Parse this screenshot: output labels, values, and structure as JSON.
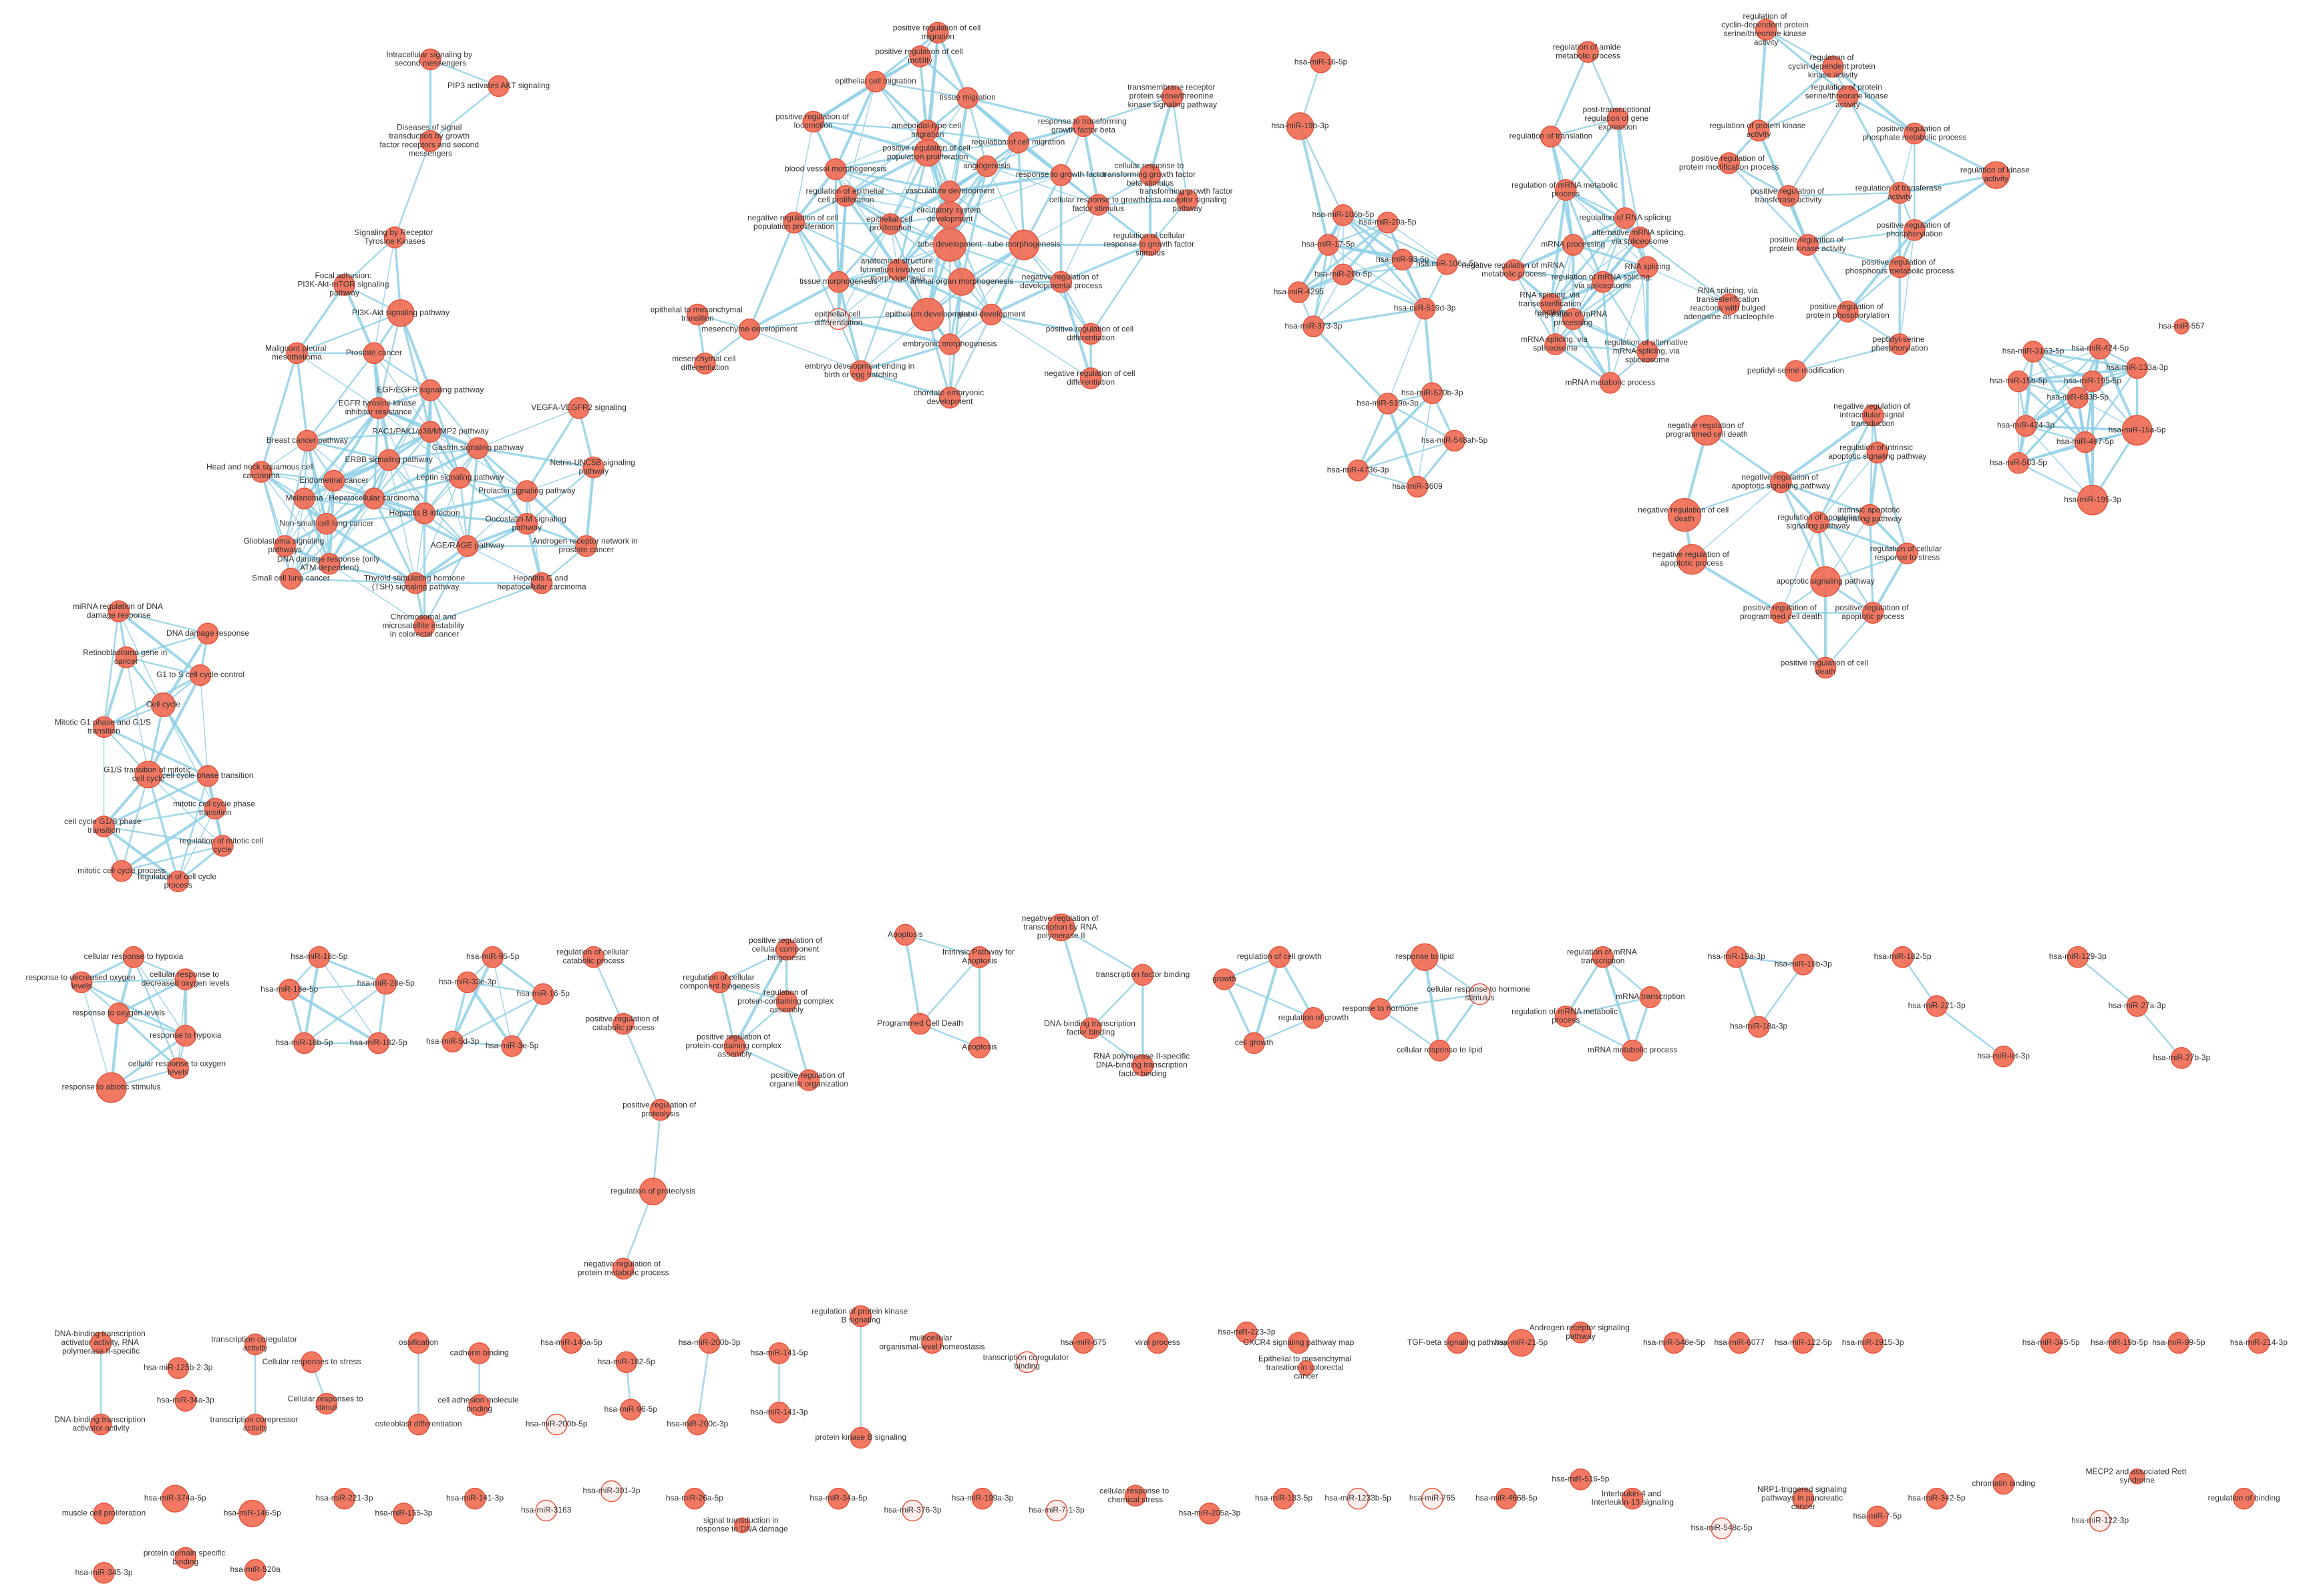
{
  "nodes": [
    "Intracellular signaling by second messengers",
    "PIP3 activates AKT signaling",
    "Diseases of signal transduction by growth factor receptors and second messengers",
    "Signaling by Receptor Tyrosine Kinases",
    "Focal adhesion: PI3K-Akt-mTOR signaling pathway",
    "PI3K-Akt signaling pathway",
    "Malignant pleural mesothelioma",
    "Prostate cancer",
    "EGF/EGFR signaling pathway",
    "VEGFA-VEGFR2 signaling",
    "EGFR tyrosine kinase inhibitor resistance",
    "RAC1/PAK1/p38/MMP2 pathway",
    "Breast cancer pathway",
    "Gastrin signaling pathway",
    "ERBB signaling pathway",
    "Netrin-UNC5B signaling pathway",
    "Head and neck squamous cell carcinoma",
    "Endometrial cancer",
    "Leptin signaling pathway",
    "Prolactin signaling pathway",
    "Hepatocellular carcinoma",
    "Melanoma",
    "Hepatitis B infection",
    "Non-small cell lung cancer",
    "Oncostatin M signaling pathway",
    "Glioblastoma signaling pathways",
    "Androgen receptor network in prostate cancer",
    "AGE/RAGE pathway",
    "DNA damage response (only ATM dependent)",
    "Small cell lung cancer",
    "Thyroid stimulating hormone (TSH) signaling pathway",
    "Hepatitis C and hepatocellular carcinoma",
    "Chromosomal and microsatellite instability in colorectal cancer",
    "miRNA regulation of DNA damage response",
    "DNA damage response",
    "Retinoblastoma gene in cancer",
    "G1 to S cell cycle control",
    "Cell cycle",
    "Mitotic G1 phase and G1/S transition",
    "G1/S transition of mitotic cell cycle",
    "cell cycle phase transition",
    "mitotic cell cycle phase transition",
    "cell cycle G1/S phase transition",
    "regulation of mitotic cell cycle",
    "mitotic cell cycle process",
    "regulation of cell cycle process",
    "positive regulation of cell migration",
    "positive regulation of cell motility",
    "epithelial cell migration",
    "tissue migration",
    "positive regulation of locomotion",
    "ameboidal-type cell migration",
    "regulation of cell migration",
    "positive regulation of cell population proliferation",
    "angiogenesis",
    "blood vessel morphogenesis",
    "regulation of epithelial cell proliferation",
    "vasculature development",
    "negative regulation of cell population proliferation",
    "epithelial cell proliferation",
    "circulatory system development",
    "tube development",
    "tube morphogenesis",
    "anatomical structure formation involved in morphogenesis",
    "animal organ morphogenesis",
    "tissue morphogenesis",
    "negative regulation of developmental process",
    "epithelial cell differentiation",
    "epithelium development",
    "gland development",
    "embryonic morphogenesis",
    "positive regulation of cell differentiation",
    "embryo development ending in birth or egg hatching",
    "negative regulation of cell differentiation",
    "chordate embryonic development",
    "epithelial to mesenchymal transition",
    "mesenchyme development",
    "mesenchymal cell differentiation",
    "transmembrane receptor protein serine/threonine kinase signaling pathway",
    "response to transforming growth factor beta",
    "response to growth factor",
    "cellular response to transforming growth factor beta stimulus",
    "cellular response to growth factor stimulus",
    "transforming growth factor beta receptor signaling pathway",
    "regulation of cellular response to growth factor stimulus",
    "hsa-miR-16-5p",
    "hsa-miR-19b-3p",
    "hsa-miR-106b-5p",
    "hsa-miR-20a-5p",
    "hsa-miR-17-5p",
    "hsa-miR-93-5p",
    "hsa-miR-20b-5p",
    "hsa-miR-106a-5p",
    "hsa-miR-519d-3p",
    "hsa-miR-4295",
    "hsa-miR-373-3p",
    "hsa-miR-520b-3p",
    "hsa-miR-519a-3p",
    "hsa-miR-548ah-5p",
    "hsa-miR-4736-3p",
    "hsa-miR-3609",
    "regulation of amide metabolic process",
    "post-transcriptional regulation of gene expression",
    "regulation of translation",
    "regulation of mRNA metabolic process",
    "regulation of RNA splicing",
    "mRNA processing",
    "alternative mRNA splicing, via spliceosome",
    "RNA splicing",
    "negative regulation of mRNA metabolic process",
    "regulation of mRNA splicing, via spliceosome",
    "RNA splicing, via transesterification reactions",
    "RNA splicing, via transesterification reactions with bulged adenosine as nucleophile",
    "regulation of mRNA processing",
    "mRNA splicing, via spliceosome",
    "regulation of alternative mRNA splicing, via spliceosome",
    "mRNA metabolic process",
    "regulation of cyclin-dependent protein serine/threonine kinase activity",
    "regulation of cyclin-dependent protein kinase activity",
    "regulation of protein serine/threonine kinase activity",
    "regulation of protein kinase activity",
    "positive regulation of phosphate metabolic process",
    "positive regulation of protein modification process",
    "regulation of kinase activity",
    "positive regulation of transferase activity",
    "regulation of transferase activity",
    "positive regulation of phosphorylation",
    "positive regulation of protein kinase activity",
    "positive regulation of phosphorus metabolic process",
    "positive regulation of protein phosphorylation",
    "peptidyl-serine phosphorylation",
    "peptidyl-serine modification",
    "hsa-miR-557",
    "hsa-miR-3163-5p",
    "hsa-miR-424-5p",
    "hsa-miR-133a-3p",
    "hsa-miR-195-5p",
    "hsa-miR-6838-5p",
    "hsa-miR-15b-5p",
    "hsa-miR-424-3p",
    "hsa-miR-497-5p",
    "hsa-miR-15a-5p",
    "hsa-miR-503-5p",
    "hsa-miR-195-3p",
    "negative regulation of intracellular signal transduction",
    "negative regulation of programmed cell death",
    "regulation of intrinsic apoptotic signaling pathway",
    "negative regulation of apoptotic signaling pathway",
    "negative regulation of cell death",
    "intrinsic apoptotic signaling pathway",
    "regulation of apoptotic signaling pathway",
    "negative regulation of apoptotic process",
    "regulation of cellular response to stress",
    "apoptotic signaling pathway",
    "positive regulation of programmed cell death",
    "positive regulation of apoptotic process",
    "positive regulation of cell death",
    "cellular response to hypoxia",
    "cellular response to decreased oxygen levels",
    "response to decreased oxygen levels",
    "response to oxygen levels",
    "response to hypoxia",
    "cellular response to oxygen levels",
    "response to abiotic stimulus",
    "hsa-miR-18c-5p",
    "hsa-miR-18e-5p",
    "hsa-miR-28e-5p",
    "hsa-miR-18b-5p",
    "hsa-miR-182-5p",
    "hsa-miR-95-5p",
    "hsa-miR-33e-3p",
    "hsa-miR-16-5p",
    "hsa-miR-5d-3p",
    "hsa-miR-3e-5p",
    "regulation of cellular catabolic process",
    "positive regulation of catabolic process",
    "positive regulation of proteolysis",
    "regulation of proteolysis",
    "negative regulation of protein metabolic process",
    "positive regulation of cellular component biogenesis",
    "regulation of cellular component biogenesis",
    "regulation of protein-containing complex assembly",
    "positive regulation of protein-containing complex assembly",
    "positive regulation of organelle organization",
    "Apoptosis",
    "Intrinsic Pathway for Apoptosis",
    "Programmed Cell Death",
    "Apoptosis",
    "negative regulation of transcription by RNA polymerase II",
    "transcription factor binding",
    "DNA-binding transcription factor binding",
    "RNA polymerase II-specific DNA-binding transcription factor binding",
    "regulation of cell growth",
    "growth",
    "regulation of growth",
    "cell growth",
    "response to lipid",
    "cellular response to hormone stimulus",
    "response to hormone",
    "cellular response to lipid",
    "regulation of mRNA transcription",
    "mRNA transcription",
    "regulation of mRNA metabolic process",
    "mRNA metabolic process",
    "hsa-miR-19a-3p",
    "hsa-miR-19b-3p",
    "hsa-miR-18a-3p",
    "hsa-miR-182-5p",
    "hsa-miR-221-3p",
    "hsa-miR-let-3p",
    "hsa-miR-129-3p",
    "hsa-miR-27a-3p",
    "hsa-miR-27b-3p",
    "DNA-binding transcription activator activity, RNA polymerase II-specific",
    "DNA-binding transcription activator activity",
    "hsa-miR-125b-2-3p",
    "hsa-miR-34a-3p",
    "transcription coregulator activity",
    "transcription corepressor activity",
    "Cellular responses to stress",
    "Cellular responses to stimuli",
    "ossification",
    "osteoblast differentiation",
    "cadherin binding",
    "cell adhesion molecule binding",
    "hsa-miR-146a-5p",
    "hsa-miR-200b-5p",
    "hsa-miR-182-5p",
    "hsa-miR-96-5p",
    "hsa-miR-200b-3p",
    "hsa-miR-200c-3p",
    "hsa-miR-141-5p",
    "hsa-miR-141-3p",
    "regulation of protein kinase B signaling",
    "protein kinase B signaling",
    "multicellular organismal-level homeostasis",
    "transcription coregulator binding",
    "hsa-miR-675",
    "viral process",
    "hsa-miR-223-3p",
    "CXCR4 signaling pathway map",
    "Epithelial to mesenchymal transition in colorectal cancer",
    "TGF-beta signaling pathway",
    "hsa-miR-21-5p",
    "Androgen receptor signaling pathway",
    "hsa-miR-548e-5p",
    "hsa-miR-6077",
    "hsa-miR-122-5p",
    "hsa-miR-1915-3p",
    "hsa-miR-345-5p",
    "hsa-miR-19b-5p",
    "hsa-miR-99-5p",
    "hsa-miR-214-3p",
    "muscle cell proliferation",
    "hsa-miR-374a-5p",
    "hsa-miR-146-5p",
    "hsa-miR-221-3p",
    "hsa-miR-155-3p",
    "hsa-miR-141-3p",
    "hsa-miR-3163",
    "hsa-miR-301-3p",
    "hsa-miR-26a-5p",
    "signal transduction in response to DNA damage",
    "hsa-miR-34a-5p",
    "hsa-miR-376-3p",
    "hsa-miR-199a-3p",
    "hsa-miR-7-1-3p",
    "cellular response to chemical stress",
    "hsa-miR-205a-3p",
    "hsa-miR-183-5p",
    "hsa-miR-1233b-5p",
    "hsa-miR-765",
    "hsa-miR-4668-5p",
    "hsa-miR-516-5p",
    "Interleukin-4 and Interleukin-13 signaling",
    "hsa-miR-548c-5p",
    "NRP1-triggered signaling pathways in pancreatic cancer",
    "hsa-miR-7-5p",
    "hsa-miR-342-5p",
    "chromatin binding",
    "hsa-miR-122-3p",
    "MECP2 and associated Rett syndrome",
    "regulation of binding",
    "protein domain specific binding",
    "hsa-miR-345-3p",
    "hsa-miR-520a"
  ]
}
